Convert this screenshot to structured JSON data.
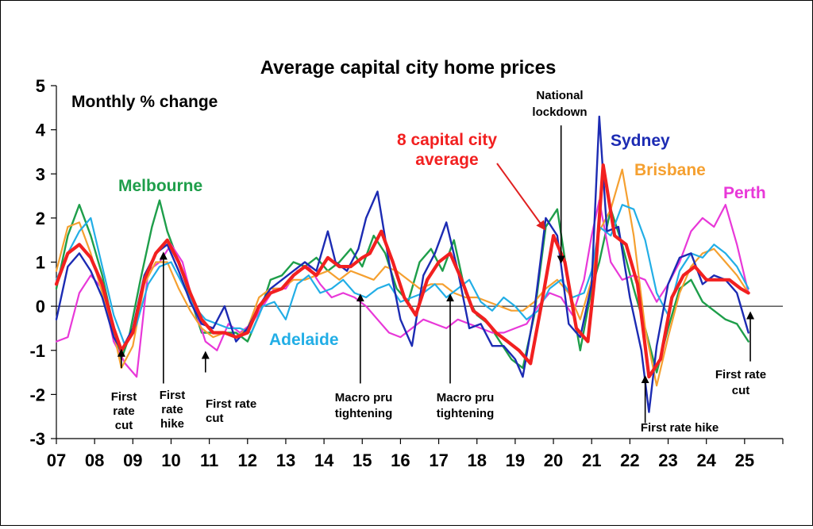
{
  "chart_data": {
    "type": "line",
    "title": "Average capital city home prices",
    "subtitle": "Monthly % change",
    "xlabel": "",
    "ylabel": "",
    "ylim": [
      -3,
      5
    ],
    "yticks": [
      -3,
      -2,
      -1,
      0,
      1,
      2,
      3,
      4,
      5
    ],
    "xlim": [
      2007,
      2026
    ],
    "xticks": [
      2007,
      2008,
      2009,
      2010,
      2011,
      2012,
      2013,
      2014,
      2015,
      2016,
      2017,
      2018,
      2019,
      2020,
      2021,
      2022,
      2023,
      2024,
      2025
    ],
    "xticklabels": [
      "07",
      "08",
      "09",
      "10",
      "11",
      "12",
      "13",
      "14",
      "15",
      "16",
      "17",
      "18",
      "19",
      "20",
      "21",
      "22",
      "23",
      "24",
      "25"
    ],
    "grid": false,
    "series": [
      {
        "name": "Melbourne",
        "color": "#1e9e4a",
        "width": 2.4,
        "x": [
          2007.0,
          2007.3,
          2007.6,
          2007.9,
          2008.2,
          2008.5,
          2008.7,
          2008.9,
          2009.2,
          2009.5,
          2009.7,
          2009.9,
          2010.2,
          2010.5,
          2010.8,
          2011.1,
          2011.4,
          2011.7,
          2012.0,
          2012.3,
          2012.6,
          2012.9,
          2013.2,
          2013.5,
          2013.8,
          2014.1,
          2014.4,
          2014.7,
          2015.0,
          2015.3,
          2015.6,
          2015.9,
          2016.2,
          2016.5,
          2016.8,
          2017.1,
          2017.4,
          2017.7,
          2018.0,
          2018.3,
          2018.6,
          2018.9,
          2019.2,
          2019.5,
          2019.8,
          2020.1,
          2020.4,
          2020.7,
          2021.0,
          2021.2,
          2021.5,
          2021.8,
          2022.1,
          2022.4,
          2022.7,
          2023.0,
          2023.3,
          2023.6,
          2023.9,
          2024.2,
          2024.5,
          2024.8,
          2025.1
        ],
        "y": [
          0.4,
          1.6,
          2.3,
          1.6,
          0.7,
          -0.5,
          -1.2,
          -0.7,
          0.6,
          1.8,
          2.4,
          1.7,
          1.0,
          0.2,
          -0.6,
          -0.6,
          -0.6,
          -0.6,
          -0.8,
          -0.2,
          0.6,
          0.7,
          1.0,
          0.9,
          1.1,
          0.8,
          1.0,
          1.3,
          0.9,
          1.6,
          1.2,
          0.4,
          0.1,
          1.0,
          1.3,
          0.8,
          1.5,
          0.3,
          -0.2,
          -0.4,
          -0.8,
          -1.2,
          -1.4,
          -0.2,
          1.8,
          2.2,
          0.5,
          -1.0,
          0.4,
          1.0,
          2.2,
          1.4,
          0.4,
          -0.5,
          -1.5,
          -0.5,
          0.4,
          0.6,
          0.1,
          -0.1,
          -0.3,
          -0.4,
          -0.8
        ]
      },
      {
        "name": "Perth",
        "color": "#e838d8",
        "width": 2.2,
        "x": [
          2007.0,
          2007.3,
          2007.6,
          2007.9,
          2008.2,
          2008.5,
          2008.8,
          2009.1,
          2009.4,
          2009.7,
          2010.0,
          2010.3,
          2010.6,
          2010.9,
          2011.2,
          2011.5,
          2011.8,
          2012.1,
          2012.4,
          2012.7,
          2013.0,
          2013.3,
          2013.6,
          2013.9,
          2014.2,
          2014.5,
          2014.8,
          2015.1,
          2015.4,
          2015.7,
          2016.0,
          2016.3,
          2016.6,
          2016.9,
          2017.2,
          2017.5,
          2017.8,
          2018.1,
          2018.4,
          2018.7,
          2019.0,
          2019.3,
          2019.6,
          2019.9,
          2020.2,
          2020.5,
          2020.8,
          2021.0,
          2021.2,
          2021.5,
          2021.8,
          2022.1,
          2022.4,
          2022.7,
          2023.0,
          2023.3,
          2023.6,
          2023.9,
          2024.2,
          2024.5,
          2024.8,
          2025.1
        ],
        "y": [
          -0.8,
          -0.7,
          0.3,
          0.7,
          0.4,
          -0.8,
          -1.3,
          -1.6,
          0.8,
          1.0,
          1.4,
          1.0,
          0.0,
          -0.8,
          -1.0,
          -0.4,
          -0.6,
          -0.4,
          0.0,
          0.4,
          0.4,
          0.8,
          0.9,
          0.5,
          0.2,
          0.3,
          0.2,
          0.0,
          -0.3,
          -0.6,
          -0.7,
          -0.5,
          -0.3,
          -0.4,
          -0.5,
          -0.3,
          -0.4,
          -0.5,
          -0.6,
          -0.6,
          -0.5,
          -0.4,
          0.0,
          0.3,
          0.2,
          -0.2,
          0.6,
          1.6,
          2.4,
          1.0,
          0.6,
          0.7,
          0.6,
          0.1,
          0.5,
          1.0,
          1.7,
          2.0,
          1.8,
          2.3,
          1.4,
          0.3
        ]
      },
      {
        "name": "Brisbane",
        "color": "#f5a030",
        "width": 2.2,
        "x": [
          2007.0,
          2007.3,
          2007.6,
          2007.9,
          2008.2,
          2008.5,
          2008.7,
          2009.0,
          2009.3,
          2009.6,
          2009.9,
          2010.2,
          2010.5,
          2010.8,
          2011.1,
          2011.4,
          2011.7,
          2012.0,
          2012.3,
          2012.6,
          2012.9,
          2013.2,
          2013.5,
          2013.8,
          2014.1,
          2014.4,
          2014.7,
          2015.0,
          2015.3,
          2015.6,
          2015.9,
          2016.2,
          2016.5,
          2016.8,
          2017.1,
          2017.4,
          2017.7,
          2018.0,
          2018.3,
          2018.6,
          2018.9,
          2019.2,
          2019.5,
          2019.8,
          2020.1,
          2020.4,
          2020.7,
          2021.0,
          2021.2,
          2021.5,
          2021.8,
          2022.1,
          2022.4,
          2022.7,
          2023.0,
          2023.3,
          2023.6,
          2023.9,
          2024.2,
          2024.5,
          2024.8,
          2025.1
        ],
        "y": [
          0.8,
          1.8,
          1.9,
          1.2,
          0.3,
          -0.6,
          -1.4,
          -0.9,
          0.5,
          1.0,
          1.0,
          0.4,
          -0.1,
          -0.5,
          -0.7,
          -0.6,
          -0.7,
          -0.5,
          0.2,
          0.4,
          0.4,
          0.6,
          0.6,
          0.7,
          0.8,
          0.6,
          0.8,
          0.7,
          0.6,
          0.9,
          0.8,
          0.6,
          0.4,
          0.5,
          0.5,
          0.3,
          0.2,
          0.2,
          0.1,
          0.0,
          -0.1,
          -0.1,
          0.1,
          0.4,
          0.6,
          0.3,
          -0.3,
          0.6,
          1.7,
          2.2,
          3.1,
          1.6,
          -0.5,
          -1.8,
          -0.7,
          0.3,
          0.9,
          1.2,
          1.3,
          1.0,
          0.7,
          0.3
        ]
      },
      {
        "name": "Adelaide",
        "color": "#22aee6",
        "width": 2.2,
        "x": [
          2007.0,
          2007.3,
          2007.6,
          2007.9,
          2008.2,
          2008.5,
          2008.8,
          2009.1,
          2009.4,
          2009.7,
          2010.0,
          2010.3,
          2010.6,
          2010.9,
          2011.2,
          2011.5,
          2011.8,
          2012.1,
          2012.4,
          2012.7,
          2013.0,
          2013.3,
          2013.6,
          2013.9,
          2014.2,
          2014.5,
          2014.8,
          2015.1,
          2015.4,
          2015.7,
          2016.0,
          2016.3,
          2016.6,
          2016.9,
          2017.2,
          2017.5,
          2017.8,
          2018.1,
          2018.4,
          2018.7,
          2019.0,
          2019.3,
          2019.6,
          2019.9,
          2020.2,
          2020.5,
          2020.8,
          2021.0,
          2021.2,
          2021.5,
          2021.8,
          2022.1,
          2022.4,
          2022.7,
          2023.0,
          2023.3,
          2023.6,
          2023.9,
          2024.2,
          2024.5,
          2024.8,
          2025.1
        ],
        "y": [
          0.6,
          1.2,
          1.7,
          2.0,
          0.9,
          -0.2,
          -0.9,
          -0.4,
          0.5,
          0.9,
          1.0,
          0.5,
          0.0,
          -0.3,
          -0.4,
          -0.5,
          -0.5,
          -0.6,
          0.0,
          0.1,
          -0.3,
          0.5,
          0.7,
          0.3,
          0.4,
          0.6,
          0.3,
          0.2,
          0.4,
          0.5,
          0.1,
          0.2,
          0.3,
          0.5,
          0.2,
          0.4,
          0.6,
          0.1,
          -0.1,
          0.2,
          0.0,
          -0.3,
          -0.1,
          0.4,
          0.6,
          0.2,
          0.3,
          0.8,
          1.8,
          1.6,
          2.3,
          2.2,
          1.5,
          0.3,
          -0.2,
          0.8,
          1.2,
          1.1,
          1.4,
          1.2,
          0.9,
          0.4
        ]
      },
      {
        "name": "Sydney",
        "color": "#1c2bb3",
        "width": 2.4,
        "x": [
          2007.0,
          2007.3,
          2007.6,
          2007.9,
          2008.2,
          2008.5,
          2008.7,
          2009.0,
          2009.3,
          2009.6,
          2009.9,
          2010.2,
          2010.5,
          2010.8,
          2011.1,
          2011.4,
          2011.7,
          2012.0,
          2012.3,
          2012.6,
          2012.9,
          2013.2,
          2013.5,
          2013.8,
          2014.1,
          2014.3,
          2014.6,
          2014.9,
          2015.1,
          2015.4,
          2015.7,
          2016.0,
          2016.3,
          2016.6,
          2016.9,
          2017.2,
          2017.5,
          2017.8,
          2018.1,
          2018.4,
          2018.7,
          2019.0,
          2019.2,
          2019.5,
          2019.8,
          2020.1,
          2020.4,
          2020.7,
          2021.0,
          2021.2,
          2021.4,
          2021.7,
          2022.0,
          2022.3,
          2022.5,
          2022.7,
          2023.0,
          2023.3,
          2023.6,
          2023.9,
          2024.2,
          2024.5,
          2024.8,
          2025.1
        ],
        "y": [
          -0.3,
          0.9,
          1.2,
          0.8,
          0.2,
          -0.7,
          -1.0,
          -0.5,
          0.7,
          1.2,
          1.4,
          0.8,
          0.1,
          -0.4,
          -0.5,
          0.0,
          -0.8,
          -0.5,
          0.0,
          0.4,
          0.6,
          0.8,
          1.0,
          0.8,
          1.7,
          1.0,
          0.8,
          1.3,
          2.0,
          2.6,
          1.0,
          -0.3,
          -0.9,
          0.7,
          1.2,
          1.9,
          0.8,
          -0.5,
          -0.4,
          -0.9,
          -0.9,
          -1.2,
          -1.6,
          -0.1,
          2.0,
          1.6,
          -0.4,
          -0.7,
          0.5,
          4.3,
          1.7,
          1.8,
          0.2,
          -1.0,
          -2.4,
          -0.9,
          0.5,
          1.1,
          1.2,
          0.5,
          0.7,
          0.6,
          0.3,
          -0.6
        ]
      },
      {
        "name": "8 capital city average",
        "color": "#f22020",
        "width": 4.2,
        "x": [
          2007.0,
          2007.3,
          2007.6,
          2007.9,
          2008.2,
          2008.5,
          2008.7,
          2009.0,
          2009.3,
          2009.6,
          2009.9,
          2010.2,
          2010.5,
          2010.8,
          2011.1,
          2011.4,
          2011.7,
          2012.0,
          2012.3,
          2012.6,
          2012.9,
          2013.2,
          2013.5,
          2013.8,
          2014.1,
          2014.4,
          2014.7,
          2015.0,
          2015.2,
          2015.5,
          2015.8,
          2016.1,
          2016.4,
          2016.7,
          2017.0,
          2017.3,
          2017.6,
          2017.9,
          2018.2,
          2018.5,
          2018.8,
          2019.1,
          2019.4,
          2019.7,
          2020.0,
          2020.3,
          2020.6,
          2020.9,
          2021.1,
          2021.3,
          2021.6,
          2021.9,
          2022.2,
          2022.5,
          2022.8,
          2023.1,
          2023.4,
          2023.7,
          2024.0,
          2024.3,
          2024.6,
          2024.9,
          2025.1
        ],
        "y": [
          0.5,
          1.2,
          1.4,
          1.1,
          0.5,
          -0.5,
          -1.0,
          -0.6,
          0.6,
          1.2,
          1.5,
          1.0,
          0.3,
          -0.3,
          -0.6,
          -0.6,
          -0.7,
          -0.6,
          0.0,
          0.3,
          0.4,
          0.7,
          0.9,
          0.7,
          1.1,
          0.9,
          0.9,
          1.1,
          1.2,
          1.7,
          1.0,
          0.2,
          -0.2,
          0.6,
          1.0,
          1.2,
          0.6,
          -0.1,
          -0.3,
          -0.6,
          -0.8,
          -1.0,
          -1.3,
          0.1,
          1.6,
          1.0,
          -0.5,
          -0.8,
          0.8,
          3.2,
          1.6,
          1.4,
          0.5,
          -1.6,
          -1.2,
          0.2,
          0.7,
          0.9,
          0.6,
          0.6,
          0.6,
          0.4,
          0.3
        ]
      }
    ],
    "series_labels": [
      "Melbourne",
      "Sydney",
      "Brisbane",
      "Perth",
      "Adelaide",
      "8 capital city",
      "average"
    ],
    "annotations": [
      {
        "lines": [
          "First",
          "rate",
          "cut"
        ],
        "x": 2008.7,
        "arrow_from": -1.4,
        "arrow_to": -1.0
      },
      {
        "lines": [
          "First",
          "rate",
          "hike"
        ],
        "x": 2009.8,
        "arrow_from": -1.75,
        "arrow_to": 1.2
      },
      {
        "lines": [
          "First rate",
          "cut"
        ],
        "x": 2010.9,
        "arrow_from": -1.5,
        "arrow_to": -1.05
      },
      {
        "lines": [
          "Macro pru",
          "tightening"
        ],
        "x": 2014.95,
        "arrow_from": -1.75,
        "arrow_to": 0.25
      },
      {
        "lines": [
          "Macro pru",
          "tightening"
        ],
        "x": 2017.3,
        "arrow_from": -1.75,
        "arrow_to": 0.25
      },
      {
        "lines": [
          "National",
          "lockdown"
        ],
        "x": 2020.2,
        "arrow_from": 4.1,
        "arrow_to": 1.0
      },
      {
        "lines": [
          "First rate hike"
        ],
        "x": 2022.4,
        "arrow_from": -2.65,
        "arrow_to": -1.6
      },
      {
        "lines": [
          "First rate",
          "cut"
        ],
        "x": 2025.15,
        "arrow_from": -1.25,
        "arrow_to": -0.15
      }
    ]
  }
}
